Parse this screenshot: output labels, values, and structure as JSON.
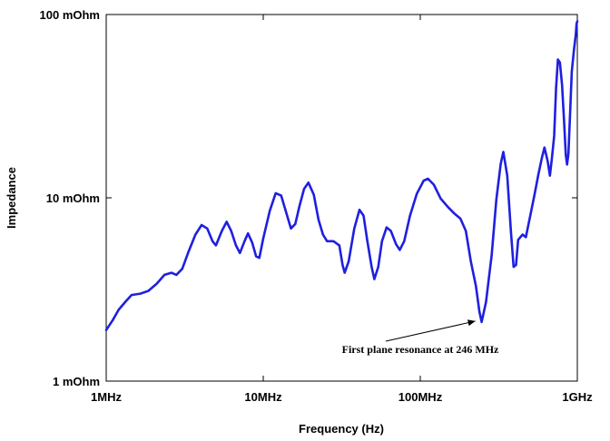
{
  "chart_data": {
    "type": "line",
    "title": "",
    "xlabel": "Frequency (Hz)",
    "ylabel": "Impedance",
    "x_scale": "log",
    "y_scale": "log",
    "xlim": [
      1000000,
      1000000000
    ],
    "ylim": [
      0.001,
      0.1
    ],
    "grid": false,
    "legend": "none",
    "x_ticks": [
      {
        "value": 1000000,
        "label": "1MHz"
      },
      {
        "value": 10000000,
        "label": "10MHz"
      },
      {
        "value": 100000000,
        "label": "100MHz"
      },
      {
        "value": 1000000000,
        "label": "1GHz"
      }
    ],
    "y_ticks": [
      {
        "value": 0.001,
        "label": "1 mOhm"
      },
      {
        "value": 0.01,
        "label": "10 mOhm"
      },
      {
        "value": 0.1,
        "label": "100 mOhm"
      }
    ],
    "series": [
      {
        "color": "#1f1fe0",
        "points": [
          [
            1000000,
            0.0019
          ],
          [
            1100000,
            0.00215
          ],
          [
            1200000,
            0.00245
          ],
          [
            1320000,
            0.0027
          ],
          [
            1450000,
            0.00295
          ],
          [
            1650000,
            0.003
          ],
          [
            1850000,
            0.0031
          ],
          [
            2100000,
            0.0034
          ],
          [
            2350000,
            0.0038
          ],
          [
            2600000,
            0.0039
          ],
          [
            2800000,
            0.0038
          ],
          [
            3050000,
            0.0041
          ],
          [
            3350000,
            0.0051
          ],
          [
            3700000,
            0.0063
          ],
          [
            4050000,
            0.0071
          ],
          [
            4400000,
            0.0068
          ],
          [
            4750000,
            0.0058
          ],
          [
            5000000,
            0.0055
          ],
          [
            5450000,
            0.0066
          ],
          [
            5850000,
            0.0074
          ],
          [
            6250000,
            0.0066
          ],
          [
            6700000,
            0.0055
          ],
          [
            7100000,
            0.005
          ],
          [
            7600000,
            0.0058
          ],
          [
            8000000,
            0.0064
          ],
          [
            8500000,
            0.0057
          ],
          [
            9000000,
            0.0048
          ],
          [
            9450000,
            0.0047
          ],
          [
            10000000,
            0.006
          ],
          [
            11000000,
            0.0085
          ],
          [
            12000000,
            0.0106
          ],
          [
            13000000,
            0.0103
          ],
          [
            14000000,
            0.0083
          ],
          [
            15000000,
            0.0068
          ],
          [
            16000000,
            0.0072
          ],
          [
            17000000,
            0.009
          ],
          [
            18200000,
            0.0112
          ],
          [
            19400000,
            0.0121
          ],
          [
            21000000,
            0.0104
          ],
          [
            22500000,
            0.0076
          ],
          [
            24000000,
            0.0063
          ],
          [
            25500000,
            0.0058
          ],
          [
            28000000,
            0.0058
          ],
          [
            30500000,
            0.0055
          ],
          [
            32000000,
            0.0043
          ],
          [
            33000000,
            0.0039
          ],
          [
            35000000,
            0.0045
          ],
          [
            38000000,
            0.0068
          ],
          [
            41000000,
            0.0086
          ],
          [
            43500000,
            0.008
          ],
          [
            46000000,
            0.0058
          ],
          [
            49000000,
            0.0042
          ],
          [
            51000000,
            0.0036
          ],
          [
            54000000,
            0.0042
          ],
          [
            57000000,
            0.0058
          ],
          [
            61000000,
            0.0069
          ],
          [
            65000000,
            0.0066
          ],
          [
            70000000,
            0.0056
          ],
          [
            74000000,
            0.0052
          ],
          [
            79000000,
            0.0058
          ],
          [
            86000000,
            0.008
          ],
          [
            95000000,
            0.0105
          ],
          [
            105000000,
            0.0124
          ],
          [
            112000000,
            0.0127
          ],
          [
            122000000,
            0.0118
          ],
          [
            135000000,
            0.0099
          ],
          [
            150000000,
            0.0089
          ],
          [
            165000000,
            0.0082
          ],
          [
            180000000,
            0.0077
          ],
          [
            195000000,
            0.0066
          ],
          [
            210000000,
            0.0045
          ],
          [
            226000000,
            0.0033
          ],
          [
            238000000,
            0.0024
          ],
          [
            246000000,
            0.0021
          ],
          [
            262000000,
            0.0027
          ],
          [
            285000000,
            0.0049
          ],
          [
            305000000,
            0.0098
          ],
          [
            325000000,
            0.0153
          ],
          [
            338000000,
            0.0178
          ],
          [
            358000000,
            0.0132
          ],
          [
            378000000,
            0.0065
          ],
          [
            393000000,
            0.0042
          ],
          [
            407000000,
            0.0043
          ],
          [
            420000000,
            0.0059
          ],
          [
            448000000,
            0.0063
          ],
          [
            470000000,
            0.0061
          ],
          [
            503000000,
            0.0081
          ],
          [
            535000000,
            0.0105
          ],
          [
            565000000,
            0.0134
          ],
          [
            593000000,
            0.0163
          ],
          [
            618000000,
            0.0188
          ],
          [
            648000000,
            0.0158
          ],
          [
            669000000,
            0.0132
          ],
          [
            690000000,
            0.0166
          ],
          [
            712000000,
            0.0218
          ],
          [
            732000000,
            0.0398
          ],
          [
            752000000,
            0.0568
          ],
          [
            775000000,
            0.0548
          ],
          [
            800000000,
            0.0412
          ],
          [
            823000000,
            0.0262
          ],
          [
            845000000,
            0.0172
          ],
          [
            860000000,
            0.0152
          ],
          [
            878000000,
            0.0174
          ],
          [
            898000000,
            0.0278
          ],
          [
            922000000,
            0.0488
          ],
          [
            952000000,
            0.0642
          ],
          [
            976000000,
            0.0768
          ],
          [
            990000000,
            0.0892
          ],
          [
            1000000000,
            0.0918
          ]
        ]
      }
    ],
    "annotations": [
      {
        "text": "First plane resonance at 246 MHz",
        "arrow_to": [
          246000000,
          0.0021
        ]
      }
    ]
  }
}
